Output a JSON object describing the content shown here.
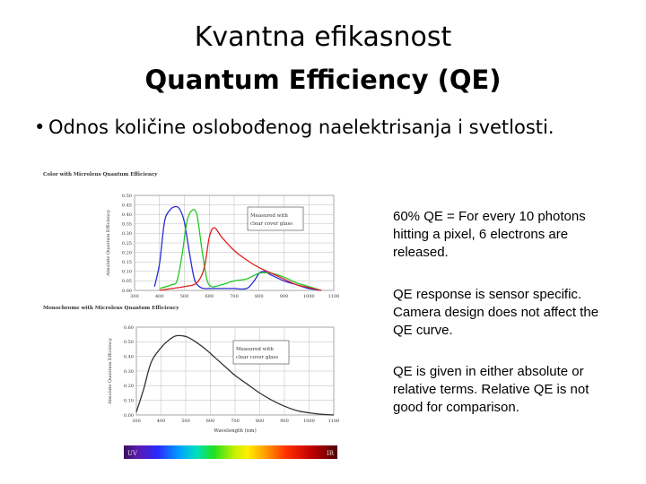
{
  "slide": {
    "title_line1": "Kvantna efikasnost",
    "title_line2": "Quantum Efficiency (QE)",
    "bullet_symbol": "•",
    "bullet_text": "Odnos količine oslobođenog naelektrisanja i svetlosti.",
    "notes": [
      "60% QE = For every 10 photons hitting a pixel, 6 electrons are released.",
      "QE response is sensor specific. Camera design does not affect the QE curve.",
      "QE is given in either absolute or relative terms. Relative QE is not good for comparison."
    ]
  },
  "colors": {
    "blue_curve": "#2a2ad8",
    "green_curve": "#22c822",
    "red_curve": "#e02020",
    "mono_curve": "#333333",
    "grid": "#bbbbbb"
  },
  "chart_data": [
    {
      "type": "line",
      "title": "Color with Microlens Quantum Efficiency",
      "ylabel": "Absolute Quantum Efficiency",
      "xlim": [
        300,
        1100
      ],
      "ylim": [
        0,
        0.5
      ],
      "xticks": [
        "300",
        "400",
        "500",
        "600",
        "700",
        "800",
        "900",
        "1000",
        "1100"
      ],
      "yticks": [
        "0.00",
        "0.05",
        "0.10",
        "0.15",
        "0.20",
        "0.25",
        "0.30",
        "0.35",
        "0.40",
        "0.45",
        "0.50"
      ],
      "annotation": "Measured with clear cover glass",
      "series": [
        {
          "color": "blue",
          "x": [
            380,
            400,
            420,
            440,
            460,
            480,
            500,
            520,
            540,
            560,
            580,
            600,
            650,
            700,
            750,
            780,
            800,
            820,
            850,
            900,
            950,
            1000,
            1050
          ],
          "y": [
            0.02,
            0.14,
            0.36,
            0.42,
            0.44,
            0.43,
            0.36,
            0.2,
            0.06,
            0.02,
            0.01,
            0.01,
            0.01,
            0.01,
            0.01,
            0.05,
            0.09,
            0.1,
            0.08,
            0.05,
            0.03,
            0.01,
            0.0
          ]
        },
        {
          "color": "green",
          "x": [
            400,
            450,
            470,
            490,
            510,
            530,
            550,
            570,
            590,
            610,
            650,
            700,
            750,
            800,
            850,
            900,
            950,
            1000,
            1050
          ],
          "y": [
            0.01,
            0.03,
            0.05,
            0.18,
            0.36,
            0.42,
            0.4,
            0.22,
            0.06,
            0.02,
            0.03,
            0.05,
            0.06,
            0.09,
            0.09,
            0.07,
            0.04,
            0.02,
            0.0
          ]
        },
        {
          "color": "red",
          "x": [
            400,
            450,
            500,
            550,
            580,
            600,
            620,
            650,
            700,
            750,
            800,
            850,
            900,
            950,
            1000,
            1050
          ],
          "y": [
            0.0,
            0.01,
            0.02,
            0.04,
            0.12,
            0.28,
            0.33,
            0.28,
            0.21,
            0.16,
            0.12,
            0.09,
            0.06,
            0.03,
            0.015,
            0.0
          ]
        }
      ]
    },
    {
      "type": "line",
      "title": "Monochrome with Microlens Quantum Efficiency",
      "xlabel": "Wavelength (nm)",
      "ylabel": "Absolute Quantum Efficiency",
      "xlim": [
        300,
        1100
      ],
      "ylim": [
        0,
        0.6
      ],
      "xticks": [
        "300",
        "400",
        "500",
        "600",
        "700",
        "800",
        "900",
        "1000",
        "1100"
      ],
      "yticks": [
        "0.00",
        "0.10",
        "0.20",
        "0.30",
        "0.40",
        "0.50",
        "0.60"
      ],
      "annotation": "Measured with clear cover glass",
      "series": [
        {
          "color": "black",
          "x": [
            300,
            330,
            360,
            400,
            430,
            460,
            490,
            510,
            540,
            580,
            620,
            660,
            700,
            750,
            800,
            850,
            900,
            950,
            1000,
            1050,
            1100
          ],
          "y": [
            0.02,
            0.18,
            0.36,
            0.46,
            0.51,
            0.54,
            0.54,
            0.53,
            0.5,
            0.45,
            0.39,
            0.33,
            0.27,
            0.21,
            0.15,
            0.1,
            0.06,
            0.03,
            0.015,
            0.005,
            0.0
          ]
        }
      ]
    }
  ],
  "spectrum": {
    "left_label": "UV",
    "right_label": "IR"
  }
}
